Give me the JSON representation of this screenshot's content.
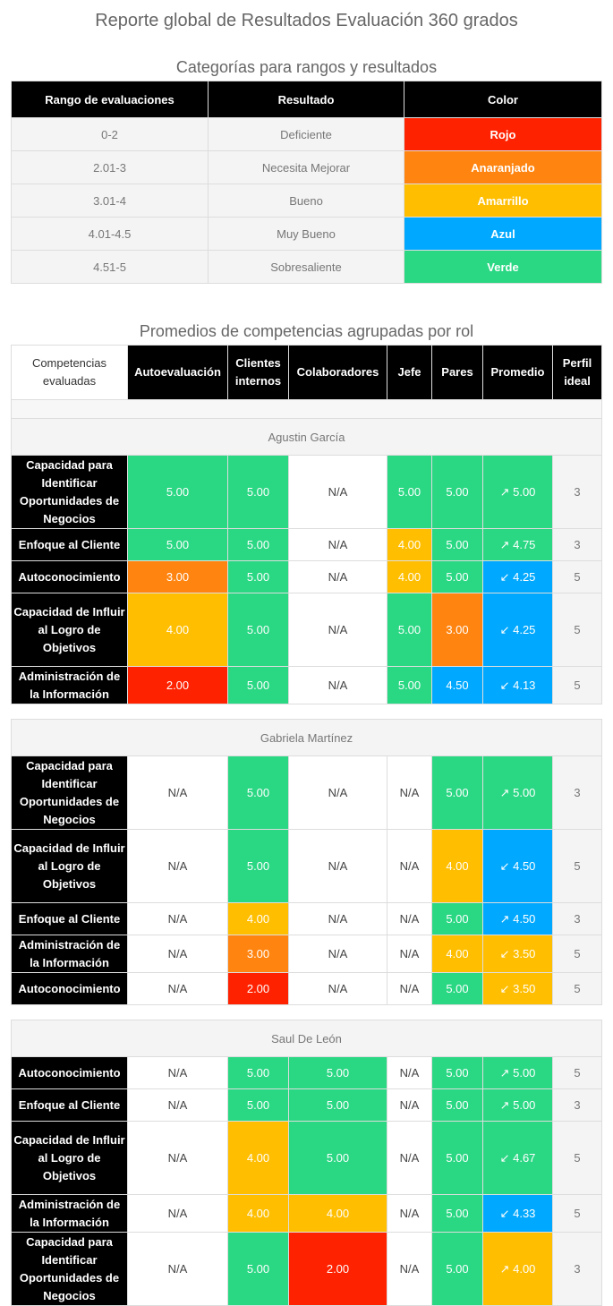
{
  "page": {
    "title": "Reporte global de Resultados Evaluación 360 grados",
    "categories_title": "Categorías para rangos y resultados",
    "averages_title": "Promedios de competencias agrupadas por rol"
  },
  "colors": {
    "Rojo": "#ff2200",
    "Anaranjado": "#ff8410",
    "Amarillo": "#ffbe00",
    "Azul": "#00a8ff",
    "Verde": "#2ad783"
  },
  "categories": {
    "headers": [
      "Rango de evaluaciones",
      "Resultado",
      "Color"
    ],
    "rows": [
      {
        "range": "0-2",
        "result": "Deficiente",
        "color": "Rojo"
      },
      {
        "range": "2.01-3",
        "result": "Necesita Mejorar",
        "color": "Anaranjado"
      },
      {
        "range": "3.01-4",
        "result": "Bueno",
        "color": "Amarrillo"
      },
      {
        "range": "4.01-4.5",
        "result": "Muy Bueno",
        "color": "Azul"
      },
      {
        "range": "4.51-5",
        "result": "Sobresaliente",
        "color": "Verde"
      }
    ]
  },
  "competencies": {
    "headers": [
      "Competencias evaluadas",
      "Autoevaluación",
      "Clientes internos",
      "Colaboradores",
      "Jefe",
      "Pares",
      "Promedio",
      "Perfil ideal"
    ],
    "groups": [
      {
        "person": "Agustin García",
        "rows": [
          {
            "name": "Capacidad para Identificar Oportunidades de Negocios",
            "values": [
              "5.00",
              "5.00",
              "N/A",
              "5.00",
              "5.00"
            ],
            "colors": [
              "Verde",
              "Verde",
              "",
              "Verde",
              "Verde"
            ],
            "avg": "↗ 5.00",
            "avg_color": "Verde",
            "ideal": "3"
          },
          {
            "name": "Enfoque al Cliente",
            "values": [
              "5.00",
              "5.00",
              "N/A",
              "4.00",
              "5.00"
            ],
            "colors": [
              "Verde",
              "Verde",
              "",
              "Amarillo",
              "Verde"
            ],
            "avg": "↗ 4.75",
            "avg_color": "Verde",
            "ideal": "3"
          },
          {
            "name": "Autoconocimiento",
            "values": [
              "3.00",
              "5.00",
              "N/A",
              "4.00",
              "5.00"
            ],
            "colors": [
              "Anaranjado",
              "Verde",
              "",
              "Amarillo",
              "Verde"
            ],
            "avg": "↙ 4.25",
            "avg_color": "Azul",
            "ideal": "5"
          },
          {
            "name": "Capacidad de Influir al Logro de Objetivos",
            "values": [
              "4.00",
              "5.00",
              "N/A",
              "5.00",
              "3.00"
            ],
            "colors": [
              "Amarillo",
              "Verde",
              "",
              "Verde",
              "Anaranjado"
            ],
            "avg": "↙ 4.25",
            "avg_color": "Azul",
            "ideal": "5"
          },
          {
            "name": "Administración de la Información",
            "values": [
              "2.00",
              "5.00",
              "N/A",
              "5.00",
              "4.50"
            ],
            "colors": [
              "Rojo",
              "Verde",
              "",
              "Verde",
              "Azul"
            ],
            "avg": "↙ 4.13",
            "avg_color": "Azul",
            "ideal": "5"
          }
        ]
      },
      {
        "person": "Gabriela Martínez",
        "rows": [
          {
            "name": "Capacidad para Identificar Oportunidades de Negocios",
            "values": [
              "N/A",
              "5.00",
              "N/A",
              "N/A",
              "5.00"
            ],
            "colors": [
              "",
              "Verde",
              "",
              "",
              "Verde"
            ],
            "avg": "↗ 5.00",
            "avg_color": "Verde",
            "ideal": "3"
          },
          {
            "name": "Capacidad de Influir al Logro de Objetivos",
            "values": [
              "N/A",
              "5.00",
              "N/A",
              "N/A",
              "4.00"
            ],
            "colors": [
              "",
              "Verde",
              "",
              "",
              "Amarillo"
            ],
            "avg": "↙ 4.50",
            "avg_color": "Azul",
            "ideal": "5"
          },
          {
            "name": "Enfoque al Cliente",
            "values": [
              "N/A",
              "4.00",
              "N/A",
              "N/A",
              "5.00"
            ],
            "colors": [
              "",
              "Amarillo",
              "",
              "",
              "Verde"
            ],
            "avg": "↗ 4.50",
            "avg_color": "Azul",
            "ideal": "3"
          },
          {
            "name": "Administración de la Información",
            "values": [
              "N/A",
              "3.00",
              "N/A",
              "N/A",
              "4.00"
            ],
            "colors": [
              "",
              "Anaranjado",
              "",
              "",
              "Amarillo"
            ],
            "avg": "↙ 3.50",
            "avg_color": "Amarillo",
            "ideal": "5"
          },
          {
            "name": "Autoconocimiento",
            "values": [
              "N/A",
              "2.00",
              "N/A",
              "N/A",
              "5.00"
            ],
            "colors": [
              "",
              "Rojo",
              "",
              "",
              "Verde"
            ],
            "avg": "↙ 3.50",
            "avg_color": "Amarillo",
            "ideal": "5"
          }
        ]
      },
      {
        "person": "Saul De León",
        "rows": [
          {
            "name": "Autoconocimiento",
            "values": [
              "N/A",
              "5.00",
              "5.00",
              "N/A",
              "5.00"
            ],
            "colors": [
              "",
              "Verde",
              "Verde",
              "",
              "Verde"
            ],
            "avg": "↗ 5.00",
            "avg_color": "Verde",
            "ideal": "5"
          },
          {
            "name": "Enfoque al Cliente",
            "values": [
              "N/A",
              "5.00",
              "5.00",
              "N/A",
              "5.00"
            ],
            "colors": [
              "",
              "Verde",
              "Verde",
              "",
              "Verde"
            ],
            "avg": "↗ 5.00",
            "avg_color": "Verde",
            "ideal": "3"
          },
          {
            "name": "Capacidad de Influir al Logro de Objetivos",
            "values": [
              "N/A",
              "4.00",
              "5.00",
              "N/A",
              "5.00"
            ],
            "colors": [
              "",
              "Amarillo",
              "Verde",
              "",
              "Verde"
            ],
            "avg": "↙ 4.67",
            "avg_color": "Verde",
            "ideal": "5"
          },
          {
            "name": "Administración de la Información",
            "values": [
              "N/A",
              "4.00",
              "4.00",
              "N/A",
              "5.00"
            ],
            "colors": [
              "",
              "Amarillo",
              "Amarillo",
              "",
              "Verde"
            ],
            "avg": "↙ 4.33",
            "avg_color": "Azul",
            "ideal": "5"
          },
          {
            "name": "Capacidad para Identificar Oportunidades de Negocios",
            "values": [
              "N/A",
              "5.00",
              "2.00",
              "N/A",
              "5.00"
            ],
            "colors": [
              "",
              "Verde",
              "Rojo",
              "",
              "Verde"
            ],
            "avg": "↗ 4.00",
            "avg_color": "Amarillo",
            "ideal": "3"
          }
        ]
      }
    ]
  }
}
